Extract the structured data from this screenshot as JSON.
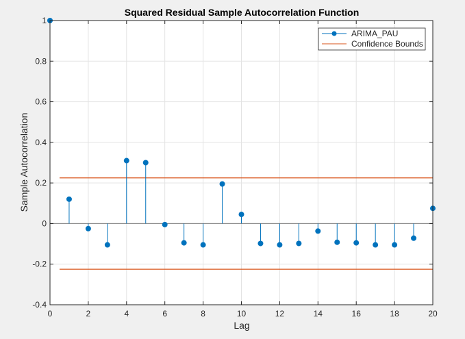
{
  "chart_data": {
    "type": "stem",
    "title": "Squared Residual Sample Autocorrelation Function",
    "xlabel": "Lag",
    "ylabel": "Sample Autocorrelation",
    "xlim": [
      0,
      20
    ],
    "ylim": [
      -0.4,
      1
    ],
    "xticks": [
      "0",
      "2",
      "4",
      "6",
      "8",
      "10",
      "12",
      "14",
      "16",
      "18",
      "20"
    ],
    "yticks": [
      "-0.4",
      "-0.2",
      "0",
      "0.2",
      "0.4",
      "0.6",
      "0.8",
      "1"
    ],
    "grid": true,
    "legend_position": "top-right",
    "series": [
      {
        "name": "ARIMA_PAU",
        "color": "#0072BD",
        "x": [
          0,
          1,
          2,
          3,
          4,
          5,
          6,
          7,
          8,
          9,
          10,
          11,
          12,
          13,
          14,
          15,
          16,
          17,
          18,
          19,
          20
        ],
        "values": [
          1.0,
          0.12,
          -0.025,
          -0.105,
          0.31,
          0.3,
          -0.005,
          -0.095,
          -0.105,
          0.195,
          0.045,
          -0.098,
          -0.105,
          -0.098,
          -0.037,
          -0.092,
          -0.095,
          -0.105,
          -0.105,
          -0.072,
          0.075
        ]
      }
    ],
    "confidence_bounds": {
      "name": "Confidence Bounds",
      "color": "#D95319",
      "upper": 0.225,
      "lower": -0.225,
      "x_range": [
        0.5,
        20
      ]
    }
  }
}
